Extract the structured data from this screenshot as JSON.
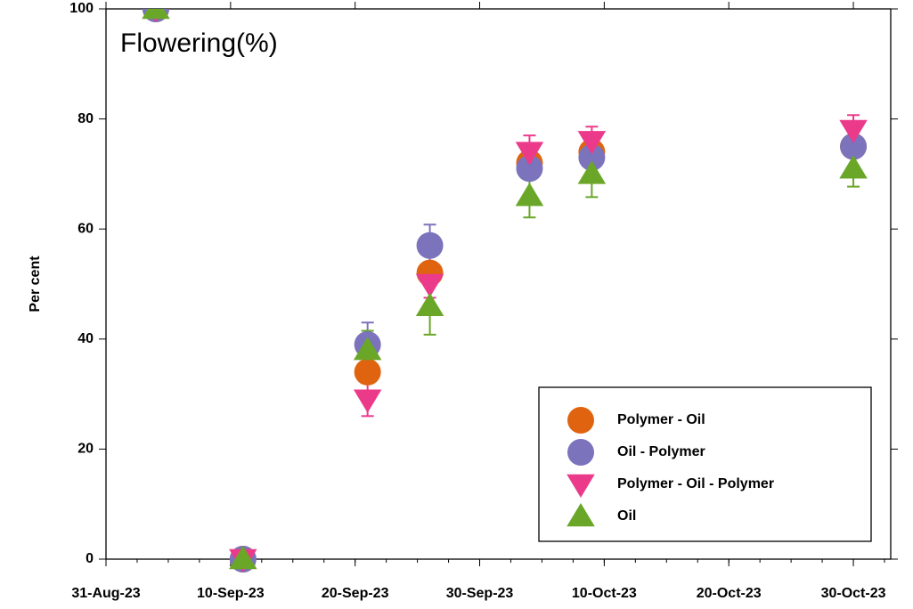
{
  "chart_data": {
    "type": "scatter",
    "annotation": "Flowering(%)",
    "ylabel": "Per cent",
    "x": [
      "2023-09-04",
      "2023-09-11",
      "2023-09-21",
      "2023-09-26",
      "2023-10-04",
      "2023-10-09",
      "2023-10-30"
    ],
    "xlim": [
      "2023-08-31",
      "2023-11-02"
    ],
    "xticks": [
      {
        "value": "2023-08-31",
        "label": "31-Aug-23"
      },
      {
        "value": "2023-09-10",
        "label": "10-Sep-23"
      },
      {
        "value": "2023-09-20",
        "label": "20-Sep-23"
      },
      {
        "value": "2023-09-30",
        "label": "30-Sep-23"
      },
      {
        "value": "2023-10-10",
        "label": "10-Oct-23"
      },
      {
        "value": "2023-10-20",
        "label": "20-Oct-23"
      },
      {
        "value": "2023-10-30",
        "label": "30-Oct-23"
      }
    ],
    "ylim": [
      0,
      100
    ],
    "yticks": [
      0,
      20,
      40,
      60,
      80,
      100
    ],
    "legend": "lower right",
    "series": [
      {
        "name": "Polymer - Oil",
        "color": "#e0640f",
        "marker": "circle",
        "values": [
          100,
          0,
          34,
          52,
          72,
          74,
          75
        ],
        "errors": [
          1,
          0.5,
          2,
          2,
          2,
          2,
          1.5
        ]
      },
      {
        "name": "Oil - Polymer",
        "color": "#7b73bb",
        "marker": "circle",
        "values": [
          100,
          0,
          39,
          57,
          71,
          73,
          75
        ],
        "errors": [
          1,
          0.5,
          4,
          3.8,
          2,
          2,
          1.5
        ]
      },
      {
        "name": "Polymer - Oil - Polymer",
        "color": "#ec3a8b",
        "marker": "triangle-down",
        "values": [
          100,
          0,
          29,
          50,
          74,
          76,
          78
        ],
        "errors": [
          1,
          0.5,
          3,
          2.5,
          3,
          2.6,
          2.7
        ]
      },
      {
        "name": "Oil",
        "color": "#6aa628",
        "marker": "triangle-up",
        "values": [
          100,
          0,
          38,
          46,
          66,
          70,
          71
        ],
        "errors": [
          1,
          0.5,
          3.5,
          5.2,
          3.9,
          4.2,
          3.3
        ]
      }
    ]
  }
}
